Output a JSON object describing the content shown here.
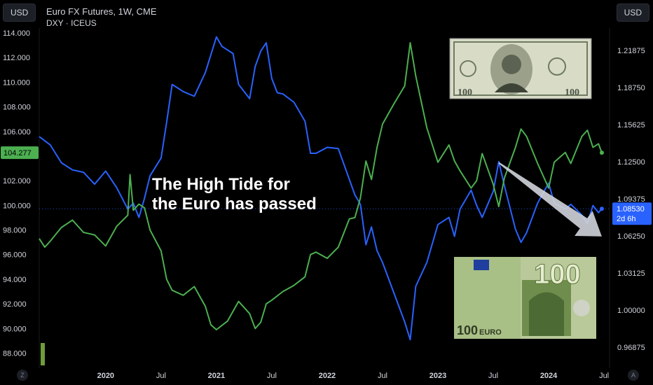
{
  "header": {
    "left_currency_button": "USD",
    "right_currency_button": "USD",
    "primary_symbol": "Euro FX Futures, 1W, CME",
    "secondary_symbol": "DXY · ICEUS"
  },
  "annotation": {
    "text": "The High Tide for\nthe Euro has passed"
  },
  "images": {
    "dollar_bill": {
      "icon": "us-100-dollar-bill",
      "number": "100"
    },
    "euro_note": {
      "icon": "euro-100-banknote",
      "value": "100",
      "currency": "EURO"
    }
  },
  "corner_buttons": {
    "left": "Z",
    "right": "A"
  },
  "chart_data": {
    "type": "line",
    "title": "Euro FX Futures, 1W, CME",
    "left_axis": {
      "ticks": [
        "114.000",
        "112.000",
        "110.000",
        "108.000",
        "106.000",
        "102.000",
        "100.000",
        "98.000",
        "96.000",
        "94.000",
        "92.000",
        "90.000",
        "88.000"
      ],
      "range": [
        87.4,
        114.4
      ],
      "last_price_label": "104.277",
      "last_price_value": 104.277
    },
    "right_axis": {
      "ticks": [
        "1.21875",
        "1.18750",
        "1.15625",
        "1.12500",
        "1.09375",
        "1.06250",
        "1.03125",
        "1.00000",
        "0.96875"
      ],
      "range": [
        0.9575,
        1.2375
      ],
      "last_price_label": "1.08530",
      "countdown_label": "2d 6h",
      "last_price_value": 1.0853
    },
    "x_axis": {
      "ticks": [
        "2020",
        "Jul",
        "2021",
        "Jul",
        "2022",
        "Jul",
        "2023",
        "Jul",
        "2024",
        "Jul"
      ],
      "tick_t": [
        2020.0,
        2020.5,
        2021.0,
        2021.5,
        2022.0,
        2022.5,
        2023.0,
        2023.5,
        2024.0,
        2024.5
      ],
      "major": [
        true,
        false,
        true,
        false,
        true,
        false,
        true,
        false,
        true,
        false
      ]
    },
    "series": [
      {
        "name": "Euro FX Futures",
        "axis": "right",
        "color": "#2962ff",
        "points": [
          [
            2019.4,
            1.146
          ],
          [
            2019.5,
            1.139
          ],
          [
            2019.6,
            1.124
          ],
          [
            2019.7,
            1.118
          ],
          [
            2019.8,
            1.116
          ],
          [
            2019.9,
            1.106
          ],
          [
            2020.0,
            1.117
          ],
          [
            2020.1,
            1.103
          ],
          [
            2020.2,
            1.085
          ],
          [
            2020.25,
            1.09
          ],
          [
            2020.3,
            1.078
          ],
          [
            2020.35,
            1.094
          ],
          [
            2020.4,
            1.113
          ],
          [
            2020.5,
            1.128
          ],
          [
            2020.55,
            1.158
          ],
          [
            2020.6,
            1.19
          ],
          [
            2020.7,
            1.184
          ],
          [
            2020.8,
            1.18
          ],
          [
            2020.9,
            1.2
          ],
          [
            2020.95,
            1.215
          ],
          [
            2021.0,
            1.23
          ],
          [
            2021.05,
            1.222
          ],
          [
            2021.15,
            1.216
          ],
          [
            2021.2,
            1.19
          ],
          [
            2021.3,
            1.178
          ],
          [
            2021.35,
            1.205
          ],
          [
            2021.4,
            1.218
          ],
          [
            2021.45,
            1.225
          ],
          [
            2021.5,
            1.195
          ],
          [
            2021.55,
            1.183
          ],
          [
            2021.6,
            1.182
          ],
          [
            2021.7,
            1.175
          ],
          [
            2021.8,
            1.159
          ],
          [
            2021.85,
            1.132
          ],
          [
            2021.9,
            1.132
          ],
          [
            2022.0,
            1.137
          ],
          [
            2022.1,
            1.136
          ],
          [
            2022.2,
            1.11
          ],
          [
            2022.25,
            1.097
          ],
          [
            2022.3,
            1.089
          ],
          [
            2022.35,
            1.055
          ],
          [
            2022.4,
            1.07
          ],
          [
            2022.45,
            1.05
          ],
          [
            2022.5,
            1.04
          ],
          [
            2022.6,
            1.015
          ],
          [
            2022.7,
            0.99
          ],
          [
            2022.75,
            0.975
          ],
          [
            2022.8,
            1.02
          ],
          [
            2022.9,
            1.04
          ],
          [
            2023.0,
            1.072
          ],
          [
            2023.1,
            1.078
          ],
          [
            2023.15,
            1.062
          ],
          [
            2023.2,
            1.085
          ],
          [
            2023.3,
            1.101
          ],
          [
            2023.35,
            1.088
          ],
          [
            2023.4,
            1.078
          ],
          [
            2023.5,
            1.1
          ],
          [
            2023.55,
            1.125
          ],
          [
            2023.6,
            1.105
          ],
          [
            2023.7,
            1.068
          ],
          [
            2023.75,
            1.057
          ],
          [
            2023.8,
            1.065
          ],
          [
            2023.9,
            1.09
          ],
          [
            2024.0,
            1.107
          ],
          [
            2024.05,
            1.09
          ],
          [
            2024.15,
            1.085
          ],
          [
            2024.2,
            1.089
          ],
          [
            2024.3,
            1.08
          ],
          [
            2024.35,
            1.073
          ],
          [
            2024.4,
            1.088
          ],
          [
            2024.45,
            1.082
          ],
          [
            2024.48,
            1.0853
          ]
        ]
      },
      {
        "name": "DXY · ICEUS",
        "axis": "left",
        "color": "#4caf50",
        "points": [
          [
            2019.4,
            97.3
          ],
          [
            2019.45,
            96.6
          ],
          [
            2019.5,
            97.1
          ],
          [
            2019.6,
            98.2
          ],
          [
            2019.7,
            98.8
          ],
          [
            2019.8,
            97.8
          ],
          [
            2019.9,
            97.6
          ],
          [
            2020.0,
            96.7
          ],
          [
            2020.1,
            98.3
          ],
          [
            2020.2,
            99.2
          ],
          [
            2020.22,
            102.5
          ],
          [
            2020.25,
            99.6
          ],
          [
            2020.3,
            100.1
          ],
          [
            2020.35,
            99.8
          ],
          [
            2020.4,
            98.0
          ],
          [
            2020.5,
            96.3
          ],
          [
            2020.55,
            94.0
          ],
          [
            2020.6,
            93.1
          ],
          [
            2020.7,
            92.7
          ],
          [
            2020.8,
            93.4
          ],
          [
            2020.9,
            91.8
          ],
          [
            2020.95,
            90.3
          ],
          [
            2021.0,
            89.9
          ],
          [
            2021.1,
            90.6
          ],
          [
            2021.2,
            92.2
          ],
          [
            2021.3,
            91.2
          ],
          [
            2021.35,
            90.0
          ],
          [
            2021.4,
            90.5
          ],
          [
            2021.45,
            92.0
          ],
          [
            2021.5,
            92.3
          ],
          [
            2021.6,
            93.0
          ],
          [
            2021.7,
            93.5
          ],
          [
            2021.8,
            94.2
          ],
          [
            2021.85,
            96.0
          ],
          [
            2021.9,
            96.2
          ],
          [
            2022.0,
            95.7
          ],
          [
            2022.1,
            96.6
          ],
          [
            2022.2,
            98.9
          ],
          [
            2022.25,
            99.0
          ],
          [
            2022.3,
            100.6
          ],
          [
            2022.35,
            103.6
          ],
          [
            2022.4,
            102.1
          ],
          [
            2022.45,
            104.7
          ],
          [
            2022.5,
            106.6
          ],
          [
            2022.6,
            108.2
          ],
          [
            2022.7,
            109.7
          ],
          [
            2022.75,
            113.2
          ],
          [
            2022.8,
            110.5
          ],
          [
            2022.9,
            106.3
          ],
          [
            2023.0,
            103.5
          ],
          [
            2023.1,
            104.9
          ],
          [
            2023.15,
            103.6
          ],
          [
            2023.2,
            102.8
          ],
          [
            2023.3,
            101.4
          ],
          [
            2023.35,
            102.0
          ],
          [
            2023.4,
            104.2
          ],
          [
            2023.5,
            101.7
          ],
          [
            2023.55,
            99.9
          ],
          [
            2023.6,
            102.2
          ],
          [
            2023.7,
            104.7
          ],
          [
            2023.75,
            106.2
          ],
          [
            2023.8,
            105.6
          ],
          [
            2023.9,
            103.4
          ],
          [
            2024.0,
            101.4
          ],
          [
            2024.05,
            103.5
          ],
          [
            2024.15,
            104.3
          ],
          [
            2024.2,
            103.4
          ],
          [
            2024.3,
            105.6
          ],
          [
            2024.35,
            106.1
          ],
          [
            2024.4,
            104.7
          ],
          [
            2024.45,
            105.0
          ],
          [
            2024.48,
            104.277
          ]
        ]
      }
    ],
    "grid": false,
    "drawn_arrow": {
      "from": [
        2023.55,
        1.124
      ],
      "to": [
        2024.48,
        1.062
      ],
      "color": "#d1d4dc"
    },
    "price_line_value_right": 1.0853
  }
}
